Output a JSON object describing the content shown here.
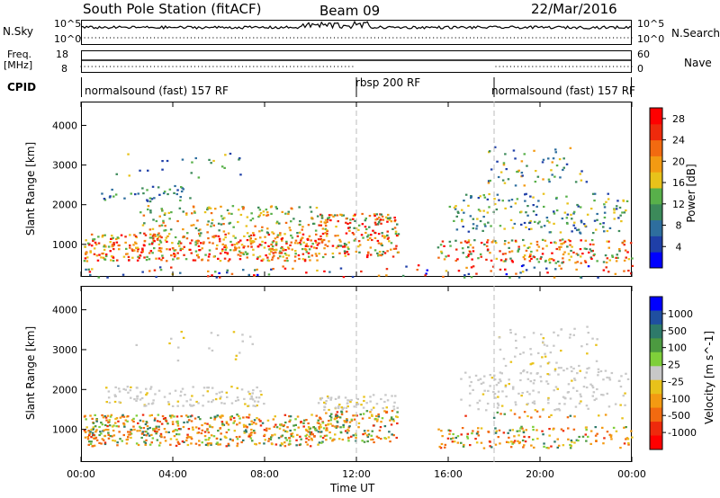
{
  "header": {
    "station": "South Pole Station (fitACF)",
    "beam": "Beam 09",
    "date": "22/Mar/2016"
  },
  "left_labels": {
    "nsky": "N.Sky",
    "freq_line1": "Freq.",
    "freq_line2": "[MHz]",
    "cpid": "CPID"
  },
  "right_labels": {
    "nsearch": "N.Search",
    "nave": "Nave"
  },
  "strip_ticks": {
    "noise_top": "10^5",
    "noise_bottom": "10^0",
    "noise_right_top": "10^5",
    "noise_right_bottom": "10^0",
    "freq_top": "18",
    "freq_bottom": "8",
    "nave_top": "60",
    "nave_bottom": "0"
  },
  "cpid_segments": [
    {
      "label": "normalsound (fast) 157 RF",
      "start_hour": 0,
      "end_hour": 12
    },
    {
      "label": "rbsp 200 RF",
      "start_hour": 12,
      "end_hour": 18
    },
    {
      "label": "normalsound (fast) 157 RF",
      "start_hour": 18,
      "end_hour": 24
    }
  ],
  "colors": {
    "power_scale": [
      "#0000ff",
      "#1f3fa8",
      "#2e6e9e",
      "#3c8a5a",
      "#58b04a",
      "#e8c21a",
      "#f39a12",
      "#f26a10",
      "#ee2a0c",
      "#ff0000"
    ],
    "velocity_scale": [
      "#0000ff",
      "#1f4fa0",
      "#2e7a6a",
      "#4c9a40",
      "#7fcf3a",
      "#c8c8c8",
      "#e8c21a",
      "#f39a12",
      "#f26a10",
      "#ee2a0c",
      "#ff0000"
    ]
  },
  "chart_data": [
    {
      "type": "heatmap",
      "title": "Power",
      "xlabel": "Time UT",
      "ylabel": "Slant Range [km]",
      "x_ticks": [
        "00:00",
        "04:00",
        "08:00",
        "12:00",
        "16:00",
        "20:00",
        "00:00"
      ],
      "y_ticks": [
        "1000",
        "2000",
        "3000",
        "4000"
      ],
      "xlim_hours": [
        0,
        24
      ],
      "ylim_km": [
        180,
        4600
      ],
      "colorbar_label": "Power [dB]",
      "colorbar_ticks": [
        "4",
        "8",
        "12",
        "16",
        "20",
        "24",
        "28"
      ],
      "colorbar_range": [
        0,
        30
      ]
    },
    {
      "type": "heatmap",
      "title": "Velocity",
      "xlabel": "Time UT",
      "ylabel": "Slant Range [km]",
      "x_ticks": [
        "00:00",
        "04:00",
        "08:00",
        "12:00",
        "16:00",
        "20:00",
        "00:00"
      ],
      "y_ticks": [
        "1000",
        "2000",
        "3000",
        "4000"
      ],
      "xlim_hours": [
        0,
        24
      ],
      "ylim_km": [
        180,
        4600
      ],
      "colorbar_label": "Velocity [m s^-1]",
      "colorbar_ticks": [
        "1000",
        "500",
        "100",
        "25",
        "-25",
        "-100",
        "-500",
        "-1000"
      ]
    }
  ]
}
